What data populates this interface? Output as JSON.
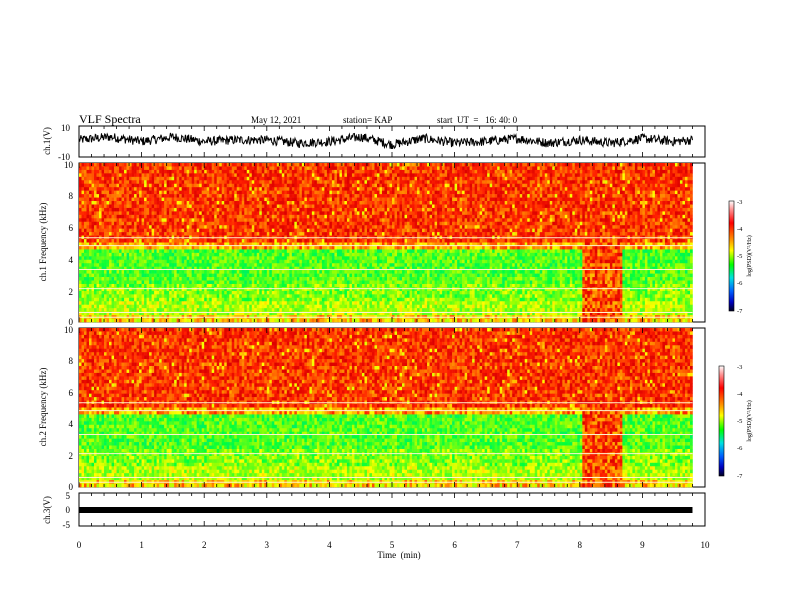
{
  "header": {
    "title": "VLF Spectra",
    "date": "May 12, 2021",
    "station": "station= KAP",
    "start": "start  UT  =   16: 40: 0"
  },
  "colors": {
    "colorbar_stops": [
      "#d00000",
      "#ff2a00",
      "#ff9a00",
      "#ffff00",
      "#a0ff00",
      "#00ff40",
      "#00d0b0",
      "#0080ff",
      "#0010c0",
      "#000040"
    ],
    "trace": "#000000"
  },
  "chart_data": [
    {
      "type": "line",
      "panel": "ch1-waveform",
      "ylabel": "ch.1(V)",
      "ylim": [
        -10,
        10
      ],
      "yticks": [
        "10",
        "-10"
      ],
      "series": [
        {
          "x": [
            0,
            0.5,
            1,
            1.5,
            2,
            2.5,
            3,
            3.5,
            4,
            4.5,
            5,
            5.5,
            6,
            6.5,
            7,
            7.5,
            8,
            8.5,
            9,
            9.5,
            9.8
          ],
          "values": [
            1,
            3,
            0,
            3,
            0,
            1,
            1,
            -1,
            0,
            3,
            -2,
            2,
            -1,
            0,
            2,
            -1,
            1,
            -1,
            2,
            0,
            1
          ]
        }
      ]
    },
    {
      "type": "heatmap",
      "panel": "ch1-spectrogram",
      "ylabel": "ch.1\nFrequency  (kHz)",
      "ylim": [
        0,
        10
      ],
      "yticks": [
        "0",
        "2",
        "4",
        "6",
        "8",
        "10"
      ],
      "xlim": [
        0,
        10
      ],
      "data_extent_min": 9.8,
      "colorbar": {
        "label": "log(PSD)(V²/Hz)",
        "range": [
          -7,
          -3
        ],
        "ticks": [
          "-3",
          "-4",
          "-5",
          "-6",
          "-7"
        ]
      }
    },
    {
      "type": "heatmap",
      "panel": "ch2-spectrogram",
      "ylabel": "ch.2\nFrequency  (kHz)",
      "ylim": [
        0,
        10
      ],
      "yticks": [
        "0",
        "2",
        "4",
        "6",
        "8",
        "10"
      ],
      "xlim": [
        0,
        10
      ],
      "data_extent_min": 9.8,
      "colorbar": {
        "label": "log(PSD)(V²/Hz)",
        "range": [
          -7,
          -3
        ],
        "ticks": [
          "-3",
          "-4",
          "-5",
          "-6",
          "-7"
        ]
      }
    },
    {
      "type": "line",
      "panel": "ch3-waveform",
      "ylabel": "ch.3(V)",
      "ylim": [
        -5,
        5
      ],
      "yticks": [
        "5",
        "0",
        "-5"
      ],
      "xlabel": "Time  (min)",
      "xlim": [
        0,
        10
      ],
      "xticks": [
        "0",
        "1",
        "2",
        "3",
        "4",
        "5",
        "6",
        "7",
        "8",
        "9",
        "10"
      ],
      "series": [
        {
          "x": [
            0,
            9.8
          ],
          "values": [
            -1,
            -1
          ]
        }
      ]
    }
  ]
}
